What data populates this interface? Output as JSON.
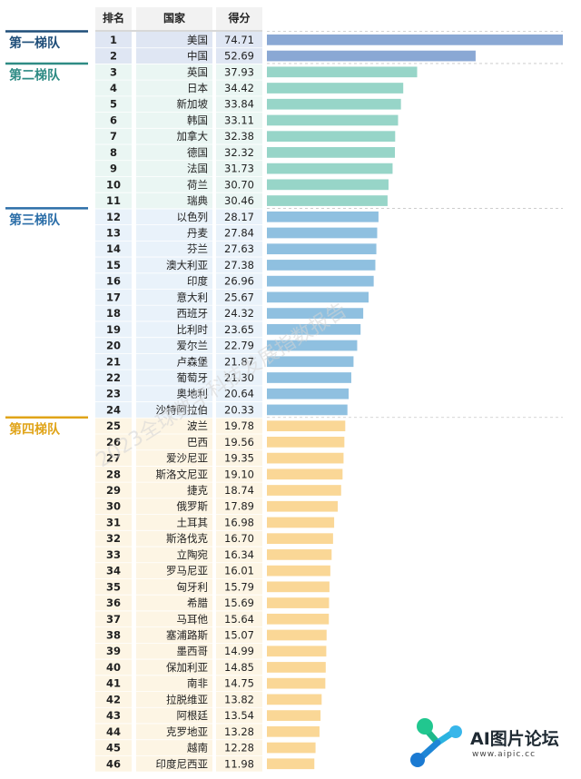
{
  "chart_data": {
    "type": "bar",
    "headers": [
      "排名",
      "国家",
      "得分"
    ],
    "categories": [
      "美国",
      "中国",
      "英国",
      "日本",
      "新加坡",
      "韩国",
      "加拿大",
      "德国",
      "法国",
      "荷兰",
      "瑞典",
      "以色列",
      "丹麦",
      "芬兰",
      "澳大利亚",
      "印度",
      "意大利",
      "西班牙",
      "比利时",
      "爱尔兰",
      "卢森堡",
      "葡萄牙",
      "奥地利",
      "沙特阿拉伯",
      "波兰",
      "巴西",
      "爱沙尼亚",
      "斯洛文尼亚",
      "捷克",
      "俄罗斯",
      "土耳其",
      "斯洛伐克",
      "立陶宛",
      "罗马尼亚",
      "匈牙利",
      "希腊",
      "马耳他",
      "塞浦路斯",
      "墨西哥",
      "保加利亚",
      "南非",
      "拉脱维亚",
      "阿根廷",
      "克罗地亚",
      "越南",
      "印度尼西亚"
    ],
    "ranks": [
      "1",
      "2",
      "3",
      "4",
      "5",
      "6",
      "7",
      "8",
      "9",
      "10",
      "11",
      "12",
      "13",
      "14",
      "15",
      "16",
      "17",
      "18",
      "19",
      "20",
      "21",
      "22",
      "23",
      "24",
      "25",
      "26",
      "27",
      "28",
      "29",
      "30",
      "31",
      "32",
      "33",
      "34",
      "35",
      "36",
      "37",
      "38",
      "39",
      "40",
      "41",
      "42",
      "43",
      "44",
      "45",
      "46"
    ],
    "values": [
      74.71,
      52.69,
      37.93,
      34.42,
      33.84,
      33.11,
      32.38,
      32.32,
      31.73,
      30.7,
      30.46,
      28.17,
      27.84,
      27.63,
      27.38,
      26.96,
      25.67,
      24.32,
      23.65,
      22.79,
      21.87,
      21.3,
      20.64,
      20.33,
      19.78,
      19.56,
      19.35,
      19.1,
      18.74,
      17.89,
      16.98,
      16.7,
      16.34,
      16.01,
      15.79,
      15.69,
      15.64,
      15.07,
      14.99,
      14.85,
      14.75,
      13.82,
      13.54,
      13.28,
      12.28,
      11.98
    ],
    "value_labels": [
      "74.71",
      "52.69",
      "37.93",
      "34.42",
      "33.84",
      "33.11",
      "32.38",
      "32.32",
      "31.73",
      "30.70",
      "30.46",
      "28.17",
      "27.84",
      "27.63",
      "27.38",
      "26.96",
      "25.67",
      "24.32",
      "23.65",
      "22.79",
      "21.87",
      "21.30",
      "20.64",
      "20.33",
      "19.78",
      "19.56",
      "19.35",
      "19.10",
      "18.74",
      "17.89",
      "16.98",
      "16.70",
      "16.34",
      "16.01",
      "15.79",
      "15.69",
      "15.64",
      "15.07",
      "14.99",
      "14.85",
      "14.75",
      "13.82",
      "13.54",
      "13.28",
      "12.28",
      "11.98"
    ],
    "tiers": [
      {
        "label": "第一梯队",
        "start": 0,
        "end": 1,
        "color": "#1f4e79",
        "bar_color": "#8aa8d4",
        "bg": "#dfe6f3"
      },
      {
        "label": "第二梯队",
        "start": 2,
        "end": 10,
        "color": "#2e8b84",
        "bar_color": "#97d5c8",
        "bg": "#eaf6f3"
      },
      {
        "label": "第三梯队",
        "start": 11,
        "end": 23,
        "color": "#2b6ea8",
        "bar_color": "#8fc0e0",
        "bg": "#e9f2fa"
      },
      {
        "label": "第四梯队",
        "start": 24,
        "end": 45,
        "color": "#e0a419",
        "bar_color": "#fad796",
        "bg": "#fdf5e4"
      }
    ],
    "xlim": [
      0,
      74.71
    ],
    "grid": false,
    "legend": "none"
  },
  "watermark": "2023全球数字科技发展指数报告",
  "logo": {
    "name": "AI图片论坛",
    "url": "www.aipic.cc"
  }
}
